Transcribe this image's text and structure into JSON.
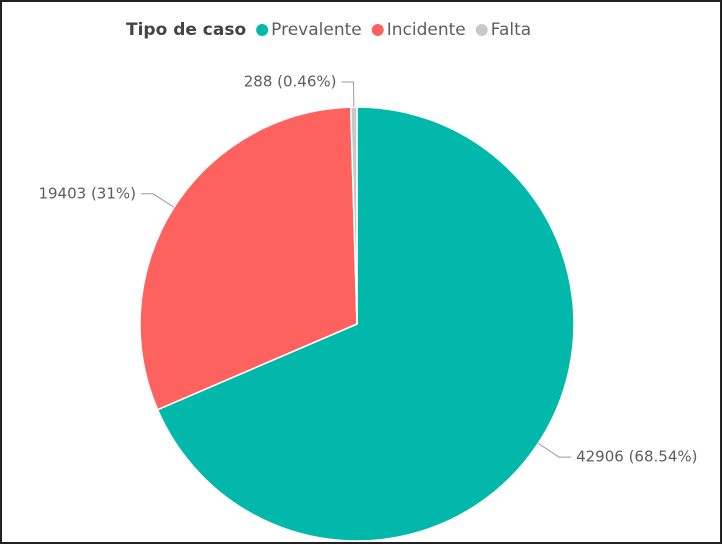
{
  "chart_data": {
    "type": "pie",
    "legend_title": "Tipo de caso",
    "categories": [
      "Prevalente",
      "Incidente",
      "Falta"
    ],
    "values": [
      42906,
      19403,
      288
    ],
    "value_labels": [
      "42906 (68.54%)",
      "19403 (31%)",
      "288 (0.46%)"
    ],
    "colors": [
      "#01b8aa",
      "#fd625e",
      "#c8c8c8"
    ],
    "legend": "top"
  }
}
